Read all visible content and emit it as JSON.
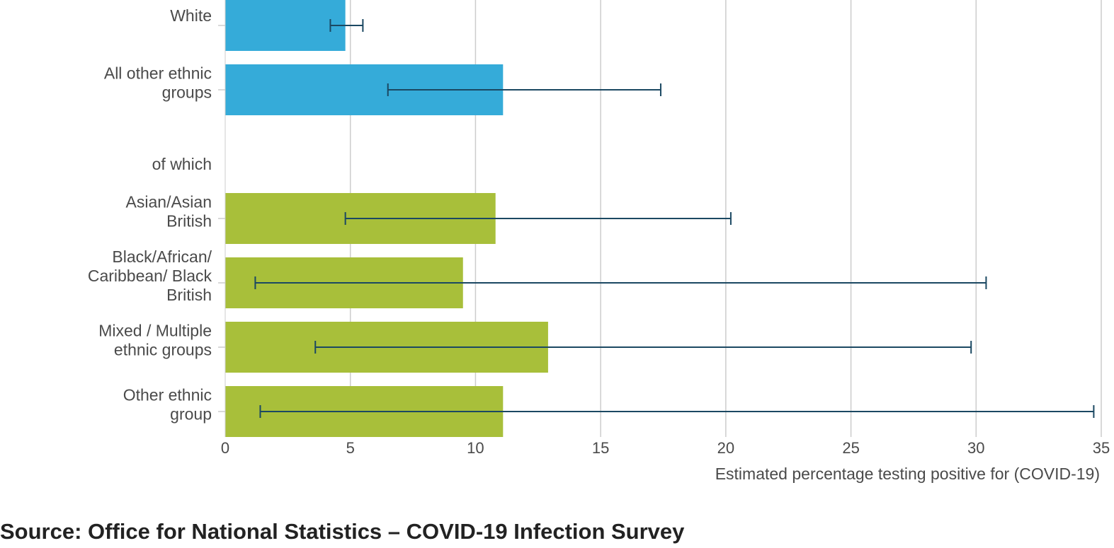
{
  "chart_data": {
    "type": "bar",
    "orientation": "horizontal",
    "xlabel": "Estimated percentage testing positive for (COVID-19)",
    "xlim": [
      0,
      35
    ],
    "xticks": [
      0,
      5,
      10,
      15,
      20,
      25,
      30,
      35
    ],
    "grid": true,
    "rows": [
      {
        "label": "White",
        "value": 4.8,
        "lower": 4.2,
        "upper": 5.5,
        "color": "#35abd9"
      },
      {
        "label": "All other ethnic groups",
        "value": 11.1,
        "lower": 6.5,
        "upper": 17.4,
        "color": "#35abd9"
      },
      {
        "label": "of which",
        "value": null
      },
      {
        "label": "Asian/Asian British",
        "value": 10.8,
        "lower": 4.8,
        "upper": 20.2,
        "color": "#a8bf3a"
      },
      {
        "label": "Black/African/ Caribbean/ Black British",
        "value": 9.5,
        "lower": 1.2,
        "upper": 30.4,
        "color": "#a8bf3a"
      },
      {
        "label": "Mixed / Multiple ethnic groups",
        "value": 12.9,
        "lower": 3.6,
        "upper": 29.8,
        "color": "#a8bf3a"
      },
      {
        "label": "Other ethnic group",
        "value": 11.1,
        "lower": 1.4,
        "upper": 34.7,
        "color": "#a8bf3a"
      }
    ],
    "error_bar_color": "#1b4862"
  },
  "source": "Source: Office for National Statistics – COVID-19 Infection Survey"
}
